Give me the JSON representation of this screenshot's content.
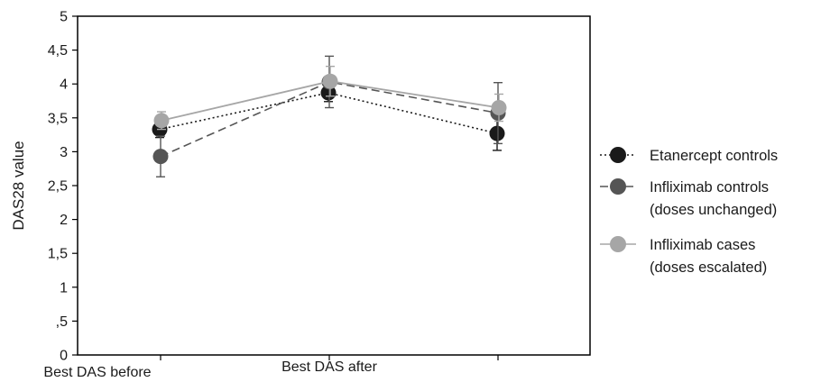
{
  "chart_data": {
    "type": "line",
    "title": "",
    "xlabel": "",
    "ylabel": "DAS28 value",
    "ylim": [
      0,
      5
    ],
    "yticks": [
      0,
      0.5,
      1,
      1.5,
      2,
      2.5,
      3,
      3.5,
      4,
      4.5,
      5
    ],
    "ytick_labels": [
      "0",
      ",5",
      "1",
      "1,5",
      "2",
      "2,5",
      "3",
      "3,5",
      "4",
      "4,5",
      "5"
    ],
    "categories": [
      "Best DAS before",
      "",
      "Best DAS after"
    ],
    "grid": false,
    "legend_position": "right",
    "series": [
      {
        "name": "Etanercept controls",
        "name_line2": "",
        "line_style": "dotted",
        "color": "#1a1a1a",
        "values": [
          3.33,
          3.87,
          3.27
        ],
        "error": [
          0.12,
          0.13,
          0.25
        ]
      },
      {
        "name": "Infliximab controls",
        "name_line2": "(doses unchanged)",
        "line_style": "dashed",
        "color": "#555555",
        "values": [
          2.93,
          4.03,
          3.57
        ],
        "error": [
          0.3,
          0.38,
          0.45
        ]
      },
      {
        "name": "Infliximab cases",
        "name_line2": "(doses escalated)",
        "line_style": "solid",
        "color": "#a6a6a6",
        "values": [
          3.46,
          4.04,
          3.65
        ],
        "error": [
          0.13,
          0.22,
          0.2
        ]
      }
    ]
  }
}
